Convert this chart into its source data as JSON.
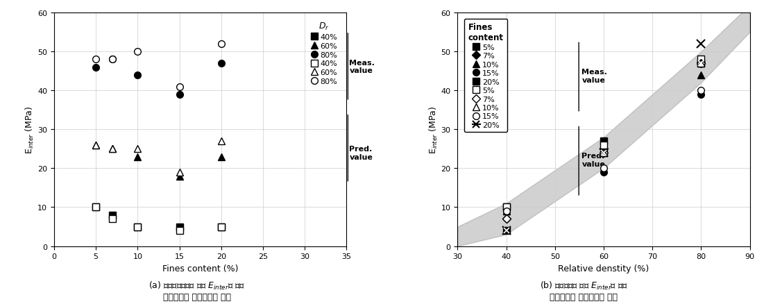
{
  "plot_a": {
    "xlabel": "Fines content (%)",
    "ylabel": "E$_{inter}$ (MPa)",
    "xlim": [
      0,
      35
    ],
    "ylim": [
      0,
      60
    ],
    "xticks": [
      0,
      5,
      10,
      15,
      20,
      25,
      30,
      35
    ],
    "yticks": [
      0,
      10,
      20,
      30,
      40,
      50,
      60
    ],
    "meas_square_filled": {
      "x": [
        5,
        7,
        10,
        15,
        20
      ],
      "y": [
        10,
        8,
        5,
        5,
        5
      ]
    },
    "meas_triangle_filled": {
      "x": [
        5,
        7,
        10,
        15,
        20
      ],
      "y": [
        26,
        25,
        23,
        18,
        23
      ]
    },
    "meas_circle_filled": {
      "x": [
        5,
        7,
        10,
        15,
        20
      ],
      "y": [
        46,
        48,
        44,
        39,
        47
      ]
    },
    "pred_square_open": {
      "x": [
        5,
        7,
        10,
        15,
        20
      ],
      "y": [
        10,
        7,
        5,
        4,
        5
      ]
    },
    "pred_triangle_open": {
      "x": [
        5,
        7,
        10,
        15,
        20
      ],
      "y": [
        26,
        25,
        25,
        19,
        27
      ]
    },
    "pred_circle_open": {
      "x": [
        5,
        7,
        10,
        15,
        20
      ],
      "y": [
        48,
        48,
        50,
        41,
        52
      ]
    },
    "caption": "(a) 세립분함유율에 따른 $E_{inter}$에 대한\n수치해석과 실험결과의 비교"
  },
  "plot_b": {
    "xlabel": "Relative denstity (%)",
    "ylabel": "E$_{inter}$ (MPa)",
    "xlim": [
      30,
      90
    ],
    "ylim": [
      0,
      60
    ],
    "xticks": [
      30,
      40,
      50,
      60,
      70,
      80,
      90
    ],
    "yticks": [
      0,
      10,
      20,
      30,
      40,
      50,
      60
    ],
    "band_x": [
      30,
      40,
      60,
      80,
      90
    ],
    "band_lower": [
      0,
      3,
      20,
      42,
      55
    ],
    "band_upper": [
      5,
      11,
      28,
      50,
      62
    ],
    "meas_square": {
      "x": [
        40,
        60,
        80
      ],
      "y": [
        10,
        27,
        47
      ]
    },
    "meas_diamond": {
      "x": [
        40,
        60,
        80
      ],
      "y": [
        7,
        25,
        47
      ]
    },
    "meas_triangle": {
      "x": [
        40,
        60,
        80
      ],
      "y": [
        9,
        25,
        44
      ]
    },
    "meas_circle": {
      "x": [
        40,
        60,
        80
      ],
      "y": [
        9,
        19,
        39
      ]
    },
    "meas_bowtie": {
      "x": [
        40,
        60,
        80
      ],
      "y": [
        4,
        24,
        47
      ]
    },
    "pred_square_open": {
      "x": [
        40,
        60,
        80
      ],
      "y": [
        10,
        26,
        48
      ]
    },
    "pred_diamond_open": {
      "x": [
        40,
        60,
        80
      ],
      "y": [
        7,
        24,
        47
      ]
    },
    "pred_triangle_open": {
      "x": [
        40,
        60,
        80
      ],
      "y": [
        9,
        24,
        47
      ]
    },
    "pred_circle_open": {
      "x": [
        40,
        60,
        80
      ],
      "y": [
        9,
        20,
        40
      ]
    },
    "pred_x": {
      "x": [
        40,
        60,
        80
      ],
      "y": [
        4,
        24,
        52
      ]
    },
    "caption": "(b) 상대밀도에 따른 $E_{inter}$에 대한\n수치해석과 실험결과의 비교"
  },
  "background_color": "#ffffff"
}
